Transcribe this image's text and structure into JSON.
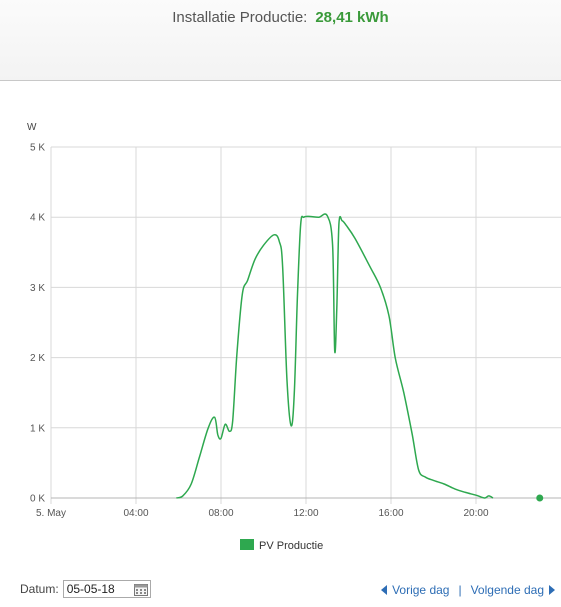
{
  "header": {
    "label": "Installatie Productie:",
    "value": "28,41 kWh"
  },
  "chart_data": {
    "type": "line",
    "ylabel": "W",
    "ylim": [
      0,
      5000
    ],
    "y_ticks": [
      {
        "value": 0,
        "label": "0 K"
      },
      {
        "value": 1000,
        "label": "1 K"
      },
      {
        "value": 2000,
        "label": "2 K"
      },
      {
        "value": 3000,
        "label": "3 K"
      },
      {
        "value": 4000,
        "label": "4 K"
      },
      {
        "value": 5000,
        "label": "5 K"
      }
    ],
    "xlim": [
      0,
      24
    ],
    "x_ticks": [
      {
        "value": 0,
        "label": "5. May"
      },
      {
        "value": 4,
        "label": "04:00"
      },
      {
        "value": 8,
        "label": "08:00"
      },
      {
        "value": 12,
        "label": "12:00"
      },
      {
        "value": 16,
        "label": "16:00"
      },
      {
        "value": 20,
        "label": "20:00"
      }
    ],
    "grid": true,
    "legend_position": "bottom-center",
    "series": [
      {
        "name": "PV Productie",
        "color": "#2ea84f",
        "x": [
          5.9,
          6.2,
          6.6,
          7.0,
          7.4,
          7.7,
          7.85,
          8.0,
          8.2,
          8.4,
          8.55,
          8.75,
          9.0,
          9.25,
          9.6,
          10.0,
          10.5,
          10.75,
          10.9,
          11.1,
          11.3,
          11.45,
          11.6,
          11.75,
          11.9,
          12.2,
          12.6,
          13.0,
          13.25,
          13.35,
          13.45,
          13.55,
          13.7,
          13.9,
          14.3,
          15.0,
          15.5,
          15.9,
          16.2,
          16.6,
          17.0,
          17.3,
          17.6,
          18.0,
          18.5,
          19.0,
          19.5,
          20.0,
          20.4,
          20.6,
          20.8
        ],
        "y": [
          0,
          30,
          200,
          600,
          1000,
          1150,
          900,
          850,
          1050,
          950,
          1100,
          2050,
          2900,
          3100,
          3400,
          3600,
          3750,
          3650,
          3300,
          1700,
          1030,
          1500,
          2900,
          3900,
          4000,
          4010,
          4000,
          4020,
          3600,
          2100,
          2700,
          3900,
          3950,
          3880,
          3700,
          3300,
          3000,
          2600,
          2000,
          1500,
          900,
          400,
          300,
          250,
          200,
          130,
          80,
          40,
          0,
          30,
          0
        ]
      }
    ],
    "marker": {
      "x": 23.0,
      "y": 0
    }
  },
  "footer": {
    "date_label": "Datum:",
    "date_value": "05-05-18",
    "prev_label": "Vorige dag",
    "separator": "|",
    "next_label": "Volgende dag"
  }
}
